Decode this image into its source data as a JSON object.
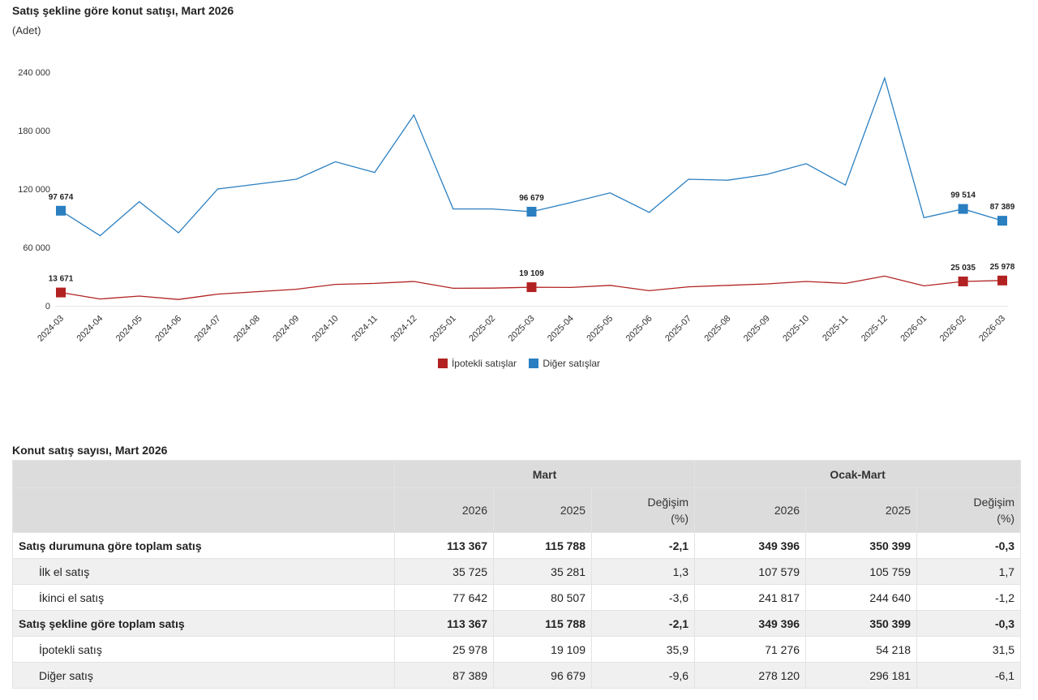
{
  "chart_data": {
    "type": "line",
    "title": "Satış şekline göre konut satışı, Mart 2026",
    "unit": "(Adet)",
    "categories": [
      "2024-03",
      "2024-04",
      "2024-05",
      "2024-06",
      "2024-07",
      "2024-08",
      "2024-09",
      "2024-10",
      "2024-11",
      "2024-12",
      "2025-01",
      "2025-02",
      "2025-03",
      "2025-04",
      "2025-05",
      "2025-06",
      "2025-07",
      "2025-08",
      "2025-09",
      "2025-10",
      "2025-11",
      "2025-12",
      "2026-01",
      "2026-02",
      "2026-03"
    ],
    "ylim": [
      0,
      240000
    ],
    "yticks": [
      0,
      60000,
      120000,
      180000,
      240000
    ],
    "ytick_labels": [
      "0",
      "60 000",
      "120 000",
      "180 000",
      "240 000"
    ],
    "grid": false,
    "legend_position": "bottom-center",
    "series": [
      {
        "name": "İpotekli satışlar",
        "color": "#b22222",
        "values": [
          13671,
          7000,
          10000,
          6500,
          12000,
          14500,
          17000,
          22000,
          23000,
          25000,
          18000,
          18200,
          19109,
          18800,
          21000,
          15500,
          19500,
          21000,
          22500,
          25000,
          23000,
          30500,
          20500,
          25035,
          25978
        ],
        "markers": [
          0,
          12,
          23,
          24
        ],
        "marker_labels": [
          "13 671",
          "19 109",
          "25 035",
          "25 978"
        ]
      },
      {
        "name": "Diğer satışlar",
        "color": "#2a7fc1",
        "values": [
          97674,
          72000,
          107000,
          75000,
          120000,
          125000,
          130000,
          148000,
          137000,
          196000,
          99500,
          99500,
          96679,
          106000,
          116000,
          96000,
          130000,
          129000,
          135000,
          146000,
          124000,
          234000,
          90500,
          99514,
          87389
        ],
        "markers": [
          0,
          12,
          23,
          24
        ],
        "marker_labels": [
          "97 674",
          "96 679",
          "99 514",
          "87 389"
        ]
      }
    ]
  },
  "table": {
    "title": "Konut satış sayısı, Mart 2026",
    "group_headers": [
      "Mart",
      "Ocak-Mart"
    ],
    "sub_headers": [
      "2026",
      "2025",
      "Değişim",
      "(%)",
      "2026",
      "2025",
      "Değişim",
      "(%)"
    ],
    "rows": [
      {
        "label": "Satış durumuna göre toplam satış",
        "values": [
          "113 367",
          "115 788",
          "-2,1",
          "349 396",
          "350 399",
          "-0,3"
        ]
      },
      {
        "label": "İlk el satış",
        "values": [
          "35 725",
          "35 281",
          "1,3",
          "107 579",
          "105 759",
          "1,7"
        ]
      },
      {
        "label": "İkinci el satış",
        "values": [
          "77 642",
          "80 507",
          "-3,6",
          "241 817",
          "244 640",
          "-1,2"
        ]
      },
      {
        "label": "Satış şekline göre toplam satış",
        "values": [
          "113 367",
          "115 788",
          "-2,1",
          "349 396",
          "350 399",
          "-0,3"
        ]
      },
      {
        "label": "İpotekli satış",
        "values": [
          "25 978",
          "19 109",
          "35,9",
          "71 276",
          "54 218",
          "31,5"
        ]
      },
      {
        "label": "Diğer satış",
        "values": [
          "87 389",
          "96 679",
          "-9,6",
          "278 120",
          "296 181",
          "-6,1"
        ]
      }
    ]
  }
}
